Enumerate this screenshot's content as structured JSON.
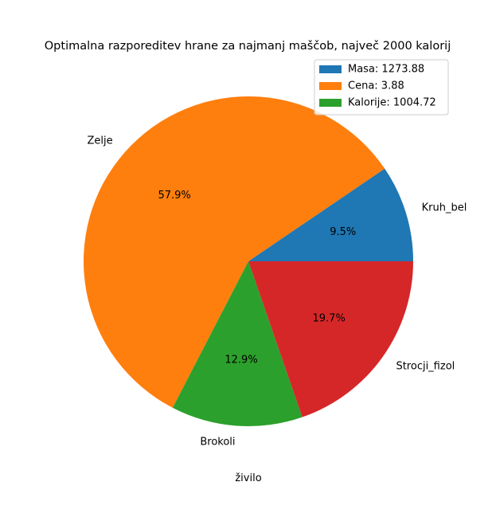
{
  "chart_data": {
    "type": "pie",
    "title": "Optimalna razporeditev hrane za najmanj maščob, največ 2000 kalorij",
    "xlabel": "živilo",
    "categories": [
      "Kruh_bel",
      "Zelje",
      "Brokoli",
      "Strocji_fizol"
    ],
    "values": [
      9.5,
      57.9,
      12.9,
      19.7
    ],
    "value_labels": [
      "9.5%",
      "57.9%",
      "12.9%",
      "19.7%"
    ],
    "colors": [
      "#1f77b4",
      "#ff7f0e",
      "#2ca02c",
      "#d62728"
    ],
    "start_angle_deg": 0,
    "direction": "counterclockwise",
    "legend": {
      "placement": "upper-right",
      "entries": [
        {
          "label": "Masa: 1273.88",
          "color": "#1f77b4"
        },
        {
          "label": "Cena: 3.88",
          "color": "#ff7f0e"
        },
        {
          "label": "Kalorije: 1004.72",
          "color": "#2ca02c"
        }
      ]
    }
  }
}
